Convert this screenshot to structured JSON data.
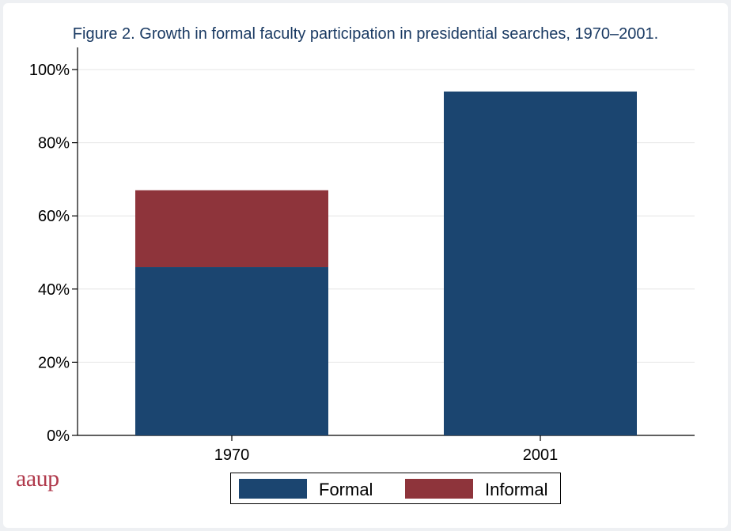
{
  "chart_data": {
    "type": "bar",
    "stacked": true,
    "title": "Figure 2. Growth in formal faculty participation in presidential searches, 1970–2001.",
    "xlabel": "",
    "ylabel": "",
    "categories": [
      "1970",
      "2001"
    ],
    "series": [
      {
        "name": "Formal",
        "values": [
          46,
          94
        ],
        "color": "#1b4570"
      },
      {
        "name": "Informal",
        "values": [
          21,
          0
        ],
        "color": "#8e343b"
      }
    ],
    "ylim": [
      0,
      100
    ],
    "yticks": [
      0,
      20,
      40,
      60,
      80,
      100
    ],
    "ytick_labels": [
      "0%",
      "20%",
      "40%",
      "60%",
      "80%",
      "100%"
    ],
    "grid": true,
    "legend_position": "bottom"
  },
  "branding": {
    "logo_text": "aaup"
  },
  "colors": {
    "title": "#1a3a63",
    "gridline": "#e6e6e6",
    "axis": "#000000",
    "logo": "#b03a4c"
  }
}
